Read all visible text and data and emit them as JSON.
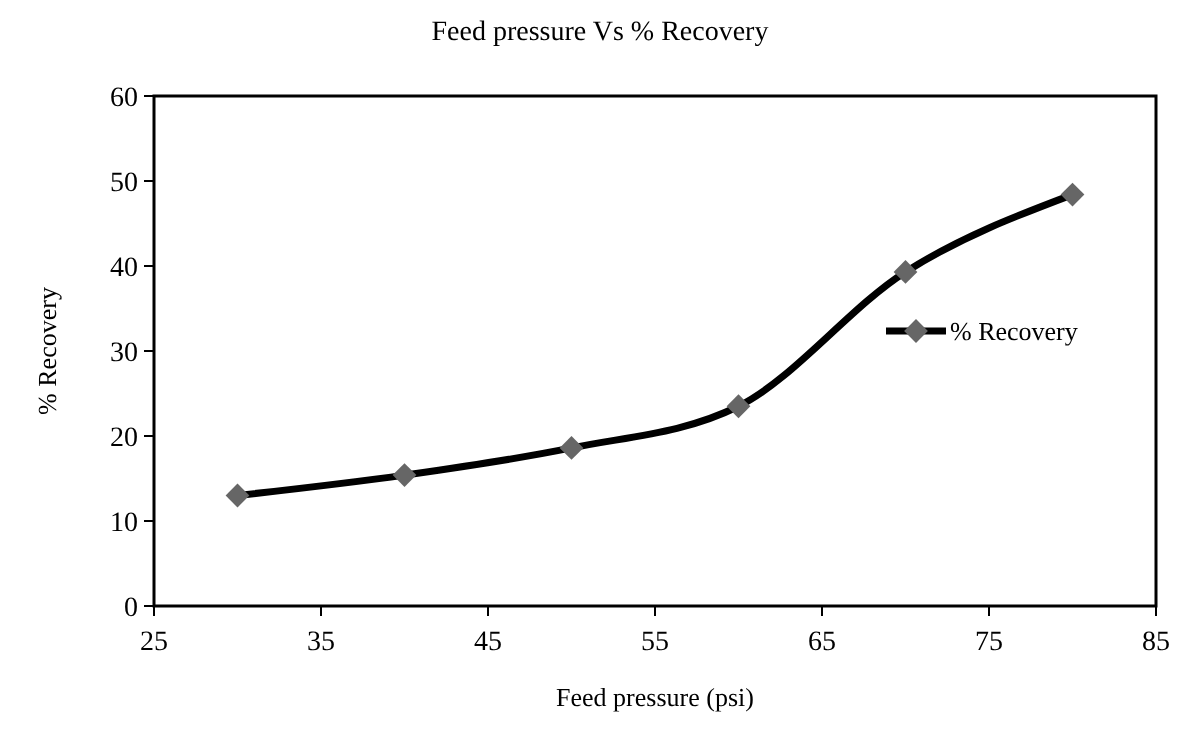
{
  "chart_data": {
    "type": "line",
    "title": "Feed pressure Vs % Recovery",
    "xlabel": "Feed pressure (psi)",
    "ylabel": "% Recovery",
    "x": [
      30,
      40,
      50,
      60,
      70,
      80
    ],
    "series": [
      {
        "name": "% Recovery",
        "color": "#000000",
        "values": [
          13.0,
          15.4,
          18.6,
          23.5,
          39.3,
          48.4
        ]
      }
    ],
    "xlim": [
      25,
      85
    ],
    "xticks": [
      25,
      35,
      45,
      55,
      65,
      75,
      85
    ],
    "ylim": [
      0,
      60
    ],
    "yticks": [
      0,
      10,
      20,
      30,
      40,
      50,
      60
    ],
    "grid": false,
    "legend": "right",
    "marker": "diamond",
    "line_style": "solid"
  }
}
